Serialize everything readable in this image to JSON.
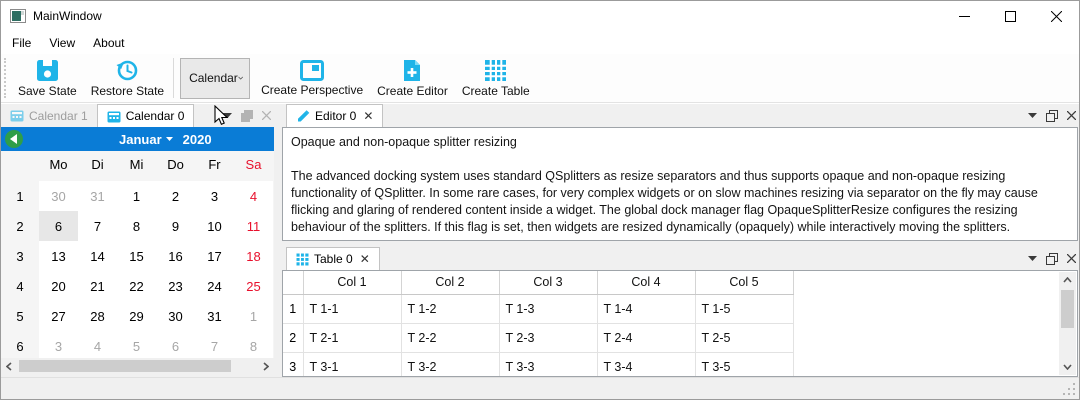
{
  "window": {
    "title": "MainWindow"
  },
  "titlebar": {
    "minimize_glyph": "—",
    "maximize_glyph": "☐",
    "close_glyph": "✕"
  },
  "menu": {
    "items": [
      "File",
      "View",
      "About"
    ]
  },
  "toolbar": {
    "save_label": "Save State",
    "restore_label": "Restore State",
    "combo_value": "Calendar",
    "perspective_label": "Create Perspective",
    "editor_label": "Create Editor",
    "table_label": "Create Table"
  },
  "calendar_dock": {
    "tabs": [
      {
        "label": "Calendar 1",
        "active": false
      },
      {
        "label": "Calendar 0",
        "active": true
      }
    ],
    "nav": {
      "month": "Januar",
      "year": "2020"
    },
    "weekday_headers": [
      {
        "t": "Mo"
      },
      {
        "t": "Di"
      },
      {
        "t": "Mi"
      },
      {
        "t": "Do"
      },
      {
        "t": "Fr"
      },
      {
        "t": "Sa",
        "red": true
      }
    ],
    "weeks": [
      {
        "num": "1",
        "days": [
          {
            "d": "30",
            "muted": true
          },
          {
            "d": "31",
            "muted": true
          },
          {
            "d": "1"
          },
          {
            "d": "2"
          },
          {
            "d": "3"
          },
          {
            "d": "4",
            "weekend": true
          }
        ]
      },
      {
        "num": "2",
        "days": [
          {
            "d": "6",
            "selected": true
          },
          {
            "d": "7"
          },
          {
            "d": "8"
          },
          {
            "d": "9"
          },
          {
            "d": "10"
          },
          {
            "d": "11",
            "weekend": true
          }
        ]
      },
      {
        "num": "3",
        "days": [
          {
            "d": "13"
          },
          {
            "d": "14"
          },
          {
            "d": "15"
          },
          {
            "d": "16"
          },
          {
            "d": "17"
          },
          {
            "d": "18",
            "weekend": true
          }
        ]
      },
      {
        "num": "4",
        "days": [
          {
            "d": "20"
          },
          {
            "d": "21"
          },
          {
            "d": "22"
          },
          {
            "d": "23"
          },
          {
            "d": "24"
          },
          {
            "d": "25",
            "weekend": true
          }
        ]
      },
      {
        "num": "5",
        "days": [
          {
            "d": "27"
          },
          {
            "d": "28"
          },
          {
            "d": "29"
          },
          {
            "d": "30"
          },
          {
            "d": "31"
          },
          {
            "d": "1",
            "muted": true
          }
        ]
      },
      {
        "num": "6",
        "days": [
          {
            "d": "3",
            "muted": true
          },
          {
            "d": "4",
            "muted": true
          },
          {
            "d": "5",
            "muted": true
          },
          {
            "d": "6",
            "muted": true
          },
          {
            "d": "7",
            "muted": true
          },
          {
            "d": "8",
            "muted": true
          }
        ]
      }
    ]
  },
  "editor_dock": {
    "tab_label": "Editor 0",
    "heading": "Opaque and non-opaque splitter resizing",
    "body": "The advanced docking system uses standard QSplitters as resize separators and thus supports opaque and non-opaque resizing functionality of QSplitter. In some rare cases, for very complex widgets or on slow machines resizing via separator on the fly may cause flicking and glaring of rendered content inside a widget. The global dock manager flag OpaqueSplitterResize configures the resizing behaviour of the splitters. If this flag is set, then widgets are resized dynamically (opaquely) while interactively moving the splitters."
  },
  "table_dock": {
    "tab_label": "Table 0",
    "columns": [
      "Col 1",
      "Col 2",
      "Col 3",
      "Col 4",
      "Col 5"
    ],
    "rows": [
      {
        "num": "1",
        "cells": [
          "T 1-1",
          "T 1-2",
          "T 1-3",
          "T 1-4",
          "T 1-5"
        ]
      },
      {
        "num": "2",
        "cells": [
          "T 2-1",
          "T 2-2",
          "T 2-3",
          "T 2-4",
          "T 2-5"
        ]
      },
      {
        "num": "3",
        "cells": [
          "T 3-1",
          "T 3-2",
          "T 3-3",
          "T 3-4",
          "T 3-5"
        ]
      }
    ]
  },
  "colors": {
    "accent_cyan": "#1fb4e8",
    "calendar_header_blue": "#0a7cd6",
    "nav_green": "#2f9e49",
    "weekend_red": "#e8112d"
  }
}
